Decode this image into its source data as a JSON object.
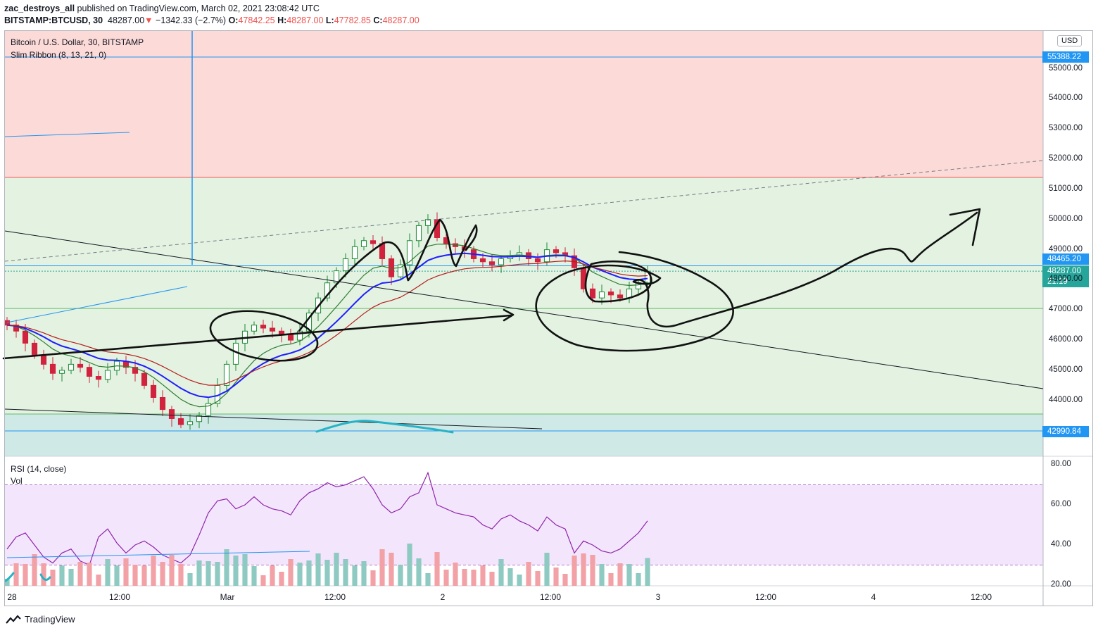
{
  "header": {
    "author": "zac_destroys_all",
    "published": " published on TradingView.com, March 02, 2021 23:08:42 UTC",
    "symbol": "BITSTAMP:BTCUSD, 30",
    "last": "48287.00",
    "change_arrow": "▼",
    "change": "−1342.33 (−2.7%)",
    "o_label": "O:",
    "o": "47842.25",
    "h_label": "H:",
    "h": "48287.00",
    "l_label": "L:",
    "l": "47782.85",
    "c_label": "C:",
    "c": "48287.00"
  },
  "legend": {
    "title": "Bitcoin / U.S. Dollar, 30, BITSTAMP",
    "indicator": "Slim Ribbon (8, 13, 21, 0)",
    "rsi": "RSI (14, close)",
    "vol": "Vol"
  },
  "currency": "USD",
  "price_tags": {
    "resistance": "55388.22",
    "level": "48465.20",
    "current": "48287.00",
    "countdown": "21:19",
    "support": "42990.84"
  },
  "footer": {
    "brand": "TradingView"
  },
  "colors": {
    "up": "#26a69a",
    "down": "#ef5350",
    "candle_up": "#1b8a34",
    "candle_down": "#d1233d",
    "ribbon_fast": "#2e7d32",
    "ribbon_mid": "#1e1eff",
    "ribbon_slow": "#b71c1c",
    "zone_red": "#fcdad7",
    "zone_green": "#e3f2e1",
    "zone_teal": "#cfe9e7",
    "rsi_band": "#f3e5fb",
    "rsi_line": "#8e24aa",
    "tag_blue": "#2196f3",
    "tag_green": "#26a69a"
  },
  "chart_data": [
    {
      "type": "candlestick",
      "title": "Bitcoin / U.S. Dollar, 30, BITSTAMP",
      "x_ticks": [
        "28",
        "12:00",
        "Mar",
        "12:00",
        "2",
        "12:00",
        "3",
        "12:00",
        "4",
        "12:00"
      ],
      "y_ticks": [
        44000,
        45000,
        46000,
        47000,
        48000,
        49000,
        50000,
        51000,
        52000,
        53000,
        54000,
        55000
      ],
      "y_tick_labels": [
        "44000.00",
        "45000.00",
        "46000.00",
        "47000.00",
        "48000.00",
        "49000.00",
        "50000.00",
        "51000.00",
        "52000.00",
        "53000.00",
        "54000.00",
        "55000.00"
      ],
      "ylim": [
        41500,
        56300
      ],
      "zones": [
        {
          "name": "red",
          "from": 51400,
          "to": 56300
        },
        {
          "name": "green",
          "from": 43550,
          "to": 51400
        },
        {
          "name": "teal",
          "from": 41600,
          "to": 43550
        }
      ],
      "horizontal_levels": [
        55388.22,
        48465.2,
        42990.84,
        47050,
        43550
      ],
      "close_series": [
        46500,
        46300,
        45900,
        45500,
        45200,
        44900,
        45000,
        45200,
        45100,
        44800,
        44700,
        45000,
        45300,
        45100,
        44900,
        44500,
        44100,
        43700,
        43400,
        43200,
        43300,
        43500,
        43900,
        44500,
        45200,
        45900,
        46300,
        46500,
        46400,
        46300,
        46200,
        46000,
        46300,
        46900,
        47400,
        47900,
        48300,
        48700,
        49100,
        49300,
        49200,
        48700,
        48100,
        48500,
        49300,
        49800,
        50000,
        49400,
        49200,
        49100,
        49000,
        48700,
        48600,
        48500,
        48700,
        48800,
        48900,
        48700,
        48600,
        49000,
        48900,
        48800,
        48400,
        47700,
        47400,
        47600,
        47500,
        47400,
        47700,
        47900,
        48287
      ]
    },
    {
      "type": "line",
      "name": "RSI (14, close)",
      "y_ticks": [
        20,
        40,
        60,
        80
      ],
      "y_tick_labels": [
        "20.00",
        "40.00",
        "60.00",
        "80.00"
      ],
      "ylim": [
        20,
        80
      ],
      "bands": [
        30,
        70
      ],
      "values": [
        38,
        44,
        46,
        40,
        34,
        31,
        36,
        38,
        32,
        30,
        44,
        48,
        41,
        36,
        40,
        42,
        39,
        35,
        33,
        31,
        35,
        45,
        56,
        62,
        63,
        58,
        60,
        64,
        60,
        58,
        57,
        55,
        62,
        66,
        68,
        71,
        69,
        70,
        72,
        74,
        68,
        60,
        56,
        58,
        64,
        66,
        76,
        60,
        58,
        56,
        55,
        54,
        50,
        48,
        53,
        55,
        52,
        50,
        47,
        54,
        50,
        48,
        36,
        42,
        40,
        37,
        36,
        38,
        42,
        46,
        52
      ]
    }
  ]
}
